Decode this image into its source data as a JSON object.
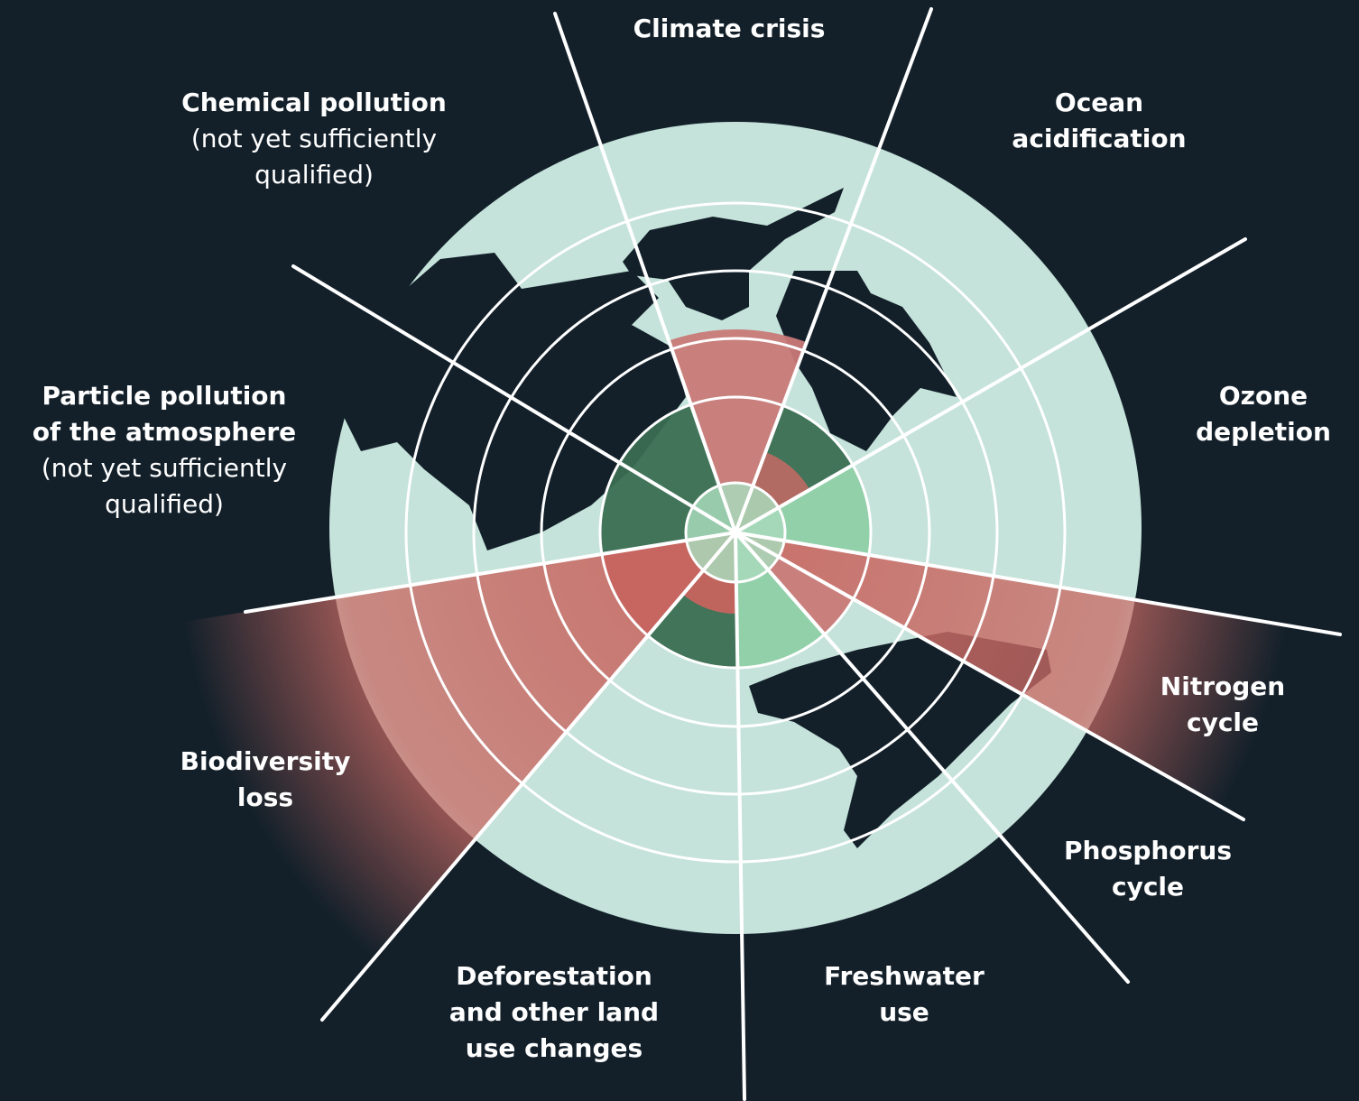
{
  "boundaries": [
    {
      "lines": [
        "Climate crisis"
      ],
      "notes": []
    },
    {
      "lines": [
        "Ocean",
        "acidification"
      ],
      "notes": []
    },
    {
      "lines": [
        "Ozone",
        "depletion"
      ],
      "notes": []
    },
    {
      "lines": [
        "Nitrogen",
        "cycle"
      ],
      "notes": []
    },
    {
      "lines": [
        "Phosphorus",
        "cycle"
      ],
      "notes": []
    },
    {
      "lines": [
        "Freshwater",
        "use"
      ],
      "notes": []
    },
    {
      "lines": [
        "Deforestation",
        "and other land",
        "use changes"
      ],
      "notes": []
    },
    {
      "lines": [
        "Biodiversity",
        "loss"
      ],
      "notes": []
    },
    {
      "lines": [
        "Particle pollution",
        "of the atmosphere"
      ],
      "notes": [
        "(not yet sufficiently",
        "qualified)"
      ]
    },
    {
      "lines": [
        "Chemical pollution"
      ],
      "notes": [
        "(not yet sufficiently",
        "qualified)"
      ]
    }
  ]
}
